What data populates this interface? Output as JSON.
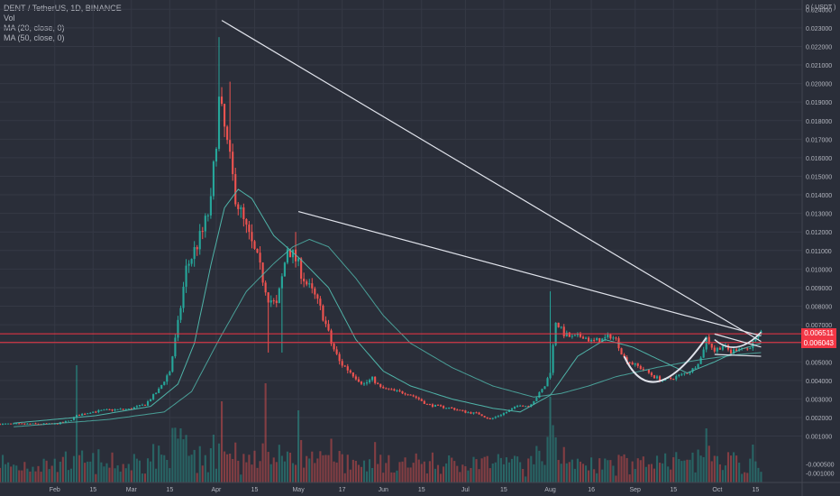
{
  "legend": {
    "symbol_line": "DENT / TetherUS, 1D, BINANCE",
    "vol": "Vol",
    "ma20": "MA (20, close, 0)",
    "ma50": "MA (50, close, 0)"
  },
  "price_tags": [
    "0.006511",
    "0.006043"
  ],
  "colors": {
    "background": "#2a2e39",
    "grid": "#353945",
    "axis_text": "#b2b5be",
    "up": "#26a69a",
    "down": "#ef5350",
    "ma": "#4fb3a8",
    "trendline": "#e0e3eb",
    "level": "#f23645"
  },
  "chart_data": {
    "type": "candlestick",
    "title": "DENT / TetherUS, 1D, BINANCE",
    "y_unit_label": "0 ( USDT )",
    "ylim": [
      -0.0015,
      0.0245
    ],
    "price_ticks": [
      0.024,
      0.023,
      0.022,
      0.021,
      0.02,
      0.019,
      0.018,
      0.017,
      0.016,
      0.015,
      0.014,
      0.013,
      0.012,
      0.011,
      0.01,
      0.009,
      0.008,
      0.007,
      0.006,
      0.005,
      0.004,
      0.003,
      0.002,
      0.001
    ],
    "price_tick_labels": [
      "0.024000",
      "0.023000",
      "0.022000",
      "0.021000",
      "0.020000",
      "0.019000",
      "0.018000",
      "0.017000",
      "0.016000",
      "0.015000",
      "0.014000",
      "0.013000",
      "0.012000",
      "0.011000",
      "0.010000",
      "0.009000",
      "0.008000",
      "0.007000",
      "0.006000",
      "0.005000",
      "0.004000",
      "0.003000",
      "0.002000",
      "0.001000"
    ],
    "neg_ticks": [
      -0.0005,
      -0.001
    ],
    "neg_tick_labels": [
      "-0.000500",
      "-0.001000"
    ],
    "x_ticks": [
      "Feb",
      "15",
      "Mar",
      "15",
      "Apr",
      "15",
      "May",
      "17",
      "Jun",
      "15",
      "Jul",
      "15",
      "Aug",
      "16",
      "Sep",
      "15",
      "Oct",
      "15"
    ],
    "x_tick_days": [
      -5,
      9,
      23,
      37,
      54,
      68,
      84,
      100,
      115,
      129,
      145,
      159,
      176,
      191,
      207,
      221,
      237,
      251
    ],
    "day_range": [
      -25,
      268
    ],
    "anchors": [
      [
        -25,
        0.00165
      ],
      [
        -5,
        0.00165
      ],
      [
        0,
        0.0018
      ],
      [
        3,
        0.0021
      ],
      [
        8,
        0.0023
      ],
      [
        14,
        0.0024
      ],
      [
        22,
        0.00245
      ],
      [
        28,
        0.0027
      ],
      [
        33,
        0.0035
      ],
      [
        37,
        0.0045
      ],
      [
        40,
        0.007
      ],
      [
        43,
        0.01
      ],
      [
        46,
        0.011
      ],
      [
        49,
        0.012
      ],
      [
        52,
        0.0135
      ],
      [
        55,
        0.019
      ],
      [
        57,
        0.0175
      ],
      [
        61,
        0.014
      ],
      [
        64,
        0.0125
      ],
      [
        69,
        0.0105
      ],
      [
        73,
        0.0085
      ],
      [
        76,
        0.008
      ],
      [
        78,
        0.0095
      ],
      [
        80,
        0.0112
      ],
      [
        83,
        0.0105
      ],
      [
        87,
        0.0092
      ],
      [
        90,
        0.0085
      ],
      [
        93,
        0.0075
      ],
      [
        96,
        0.006
      ],
      [
        99,
        0.005
      ],
      [
        102,
        0.0046
      ],
      [
        105,
        0.0042
      ],
      [
        108,
        0.0038
      ],
      [
        111,
        0.0041
      ],
      [
        114,
        0.0036
      ],
      [
        117,
        0.0035
      ],
      [
        120,
        0.0034
      ],
      [
        124,
        0.0033
      ],
      [
        128,
        0.003
      ],
      [
        131,
        0.0027
      ],
      [
        135,
        0.0026
      ],
      [
        140,
        0.0025
      ],
      [
        145,
        0.0023
      ],
      [
        150,
        0.0022
      ],
      [
        154,
        0.0019
      ],
      [
        157,
        0.0021
      ],
      [
        160,
        0.0023
      ],
      [
        165,
        0.0027
      ],
      [
        168,
        0.0026
      ],
      [
        171,
        0.0031
      ],
      [
        174,
        0.0037
      ],
      [
        176,
        0.0045
      ],
      [
        178,
        0.0072
      ],
      [
        181,
        0.0065
      ],
      [
        184,
        0.0063
      ],
      [
        188,
        0.0064
      ],
      [
        191,
        0.0061
      ],
      [
        195,
        0.0062
      ],
      [
        198,
        0.0064
      ],
      [
        200,
        0.0062
      ],
      [
        203,
        0.0052
      ],
      [
        206,
        0.0049
      ],
      [
        210,
        0.0046
      ],
      [
        214,
        0.0042
      ],
      [
        217,
        0.004
      ],
      [
        220,
        0.0041
      ],
      [
        224,
        0.0043
      ],
      [
        228,
        0.0046
      ],
      [
        231,
        0.0052
      ],
      [
        233,
        0.0063
      ],
      [
        236,
        0.0056
      ],
      [
        239,
        0.0059
      ],
      [
        242,
        0.0055
      ],
      [
        245,
        0.0058
      ],
      [
        248,
        0.0057
      ],
      [
        251,
        0.0062
      ],
      [
        253,
        0.0065
      ]
    ],
    "spikes": [
      [
        40,
        0.0065,
        0.0068
      ],
      [
        55,
        0.0225,
        0.019
      ],
      [
        59,
        0.0201,
        0.0175
      ],
      [
        73,
        0.0055,
        0.006
      ],
      [
        78,
        0.0055,
        0.0065
      ],
      [
        83,
        0.012,
        0.011
      ],
      [
        176,
        0.0088,
        0.0072
      ]
    ],
    "ma_short_anchors": [
      [
        -20,
        0.0017
      ],
      [
        10,
        0.0021
      ],
      [
        30,
        0.0026
      ],
      [
        40,
        0.0038
      ],
      [
        46,
        0.006
      ],
      [
        52,
        0.0102
      ],
      [
        57,
        0.0133
      ],
      [
        62,
        0.0143
      ],
      [
        67,
        0.0138
      ],
      [
        75,
        0.0118
      ],
      [
        85,
        0.0105
      ],
      [
        95,
        0.009
      ],
      [
        105,
        0.0062
      ],
      [
        115,
        0.0045
      ],
      [
        125,
        0.0037
      ],
      [
        140,
        0.003
      ],
      [
        155,
        0.0025
      ],
      [
        165,
        0.0023
      ],
      [
        176,
        0.0032
      ],
      [
        186,
        0.0053
      ],
      [
        196,
        0.0062
      ],
      [
        206,
        0.0058
      ],
      [
        216,
        0.0051
      ],
      [
        226,
        0.0044
      ],
      [
        236,
        0.005
      ],
      [
        246,
        0.0057
      ],
      [
        253,
        0.006
      ]
    ],
    "ma_long_anchors": [
      [
        -20,
        0.0015
      ],
      [
        15,
        0.0019
      ],
      [
        35,
        0.0023
      ],
      [
        45,
        0.0034
      ],
      [
        55,
        0.0062
      ],
      [
        65,
        0.0088
      ],
      [
        75,
        0.0103
      ],
      [
        82,
        0.0112
      ],
      [
        88,
        0.0116
      ],
      [
        95,
        0.0112
      ],
      [
        105,
        0.0095
      ],
      [
        115,
        0.0075
      ],
      [
        125,
        0.006
      ],
      [
        140,
        0.0047
      ],
      [
        155,
        0.0037
      ],
      [
        170,
        0.0031
      ],
      [
        180,
        0.0033
      ],
      [
        190,
        0.0037
      ],
      [
        200,
        0.0042
      ],
      [
        215,
        0.0047
      ],
      [
        230,
        0.0051
      ],
      [
        245,
        0.0054
      ],
      [
        253,
        0.0055
      ]
    ],
    "trendlines": [
      [
        [
          56,
          0.0234
        ],
        [
          253,
          0.0061
        ]
      ],
      [
        [
          84,
          0.0131
        ],
        [
          253,
          0.0064
        ]
      ],
      [
        [
          236,
          0.0065
        ],
        [
          253,
          0.0058
        ]
      ],
      [
        [
          236,
          0.0054
        ],
        [
          253,
          0.0053
        ]
      ]
    ],
    "cup_arc": {
      "from": [
        203,
        0.0053
      ],
      "via": [
        213,
        0.0038
      ],
      "to": [
        233,
        0.0063
      ]
    },
    "level_lines": [
      0.006511,
      0.006043
    ]
  }
}
